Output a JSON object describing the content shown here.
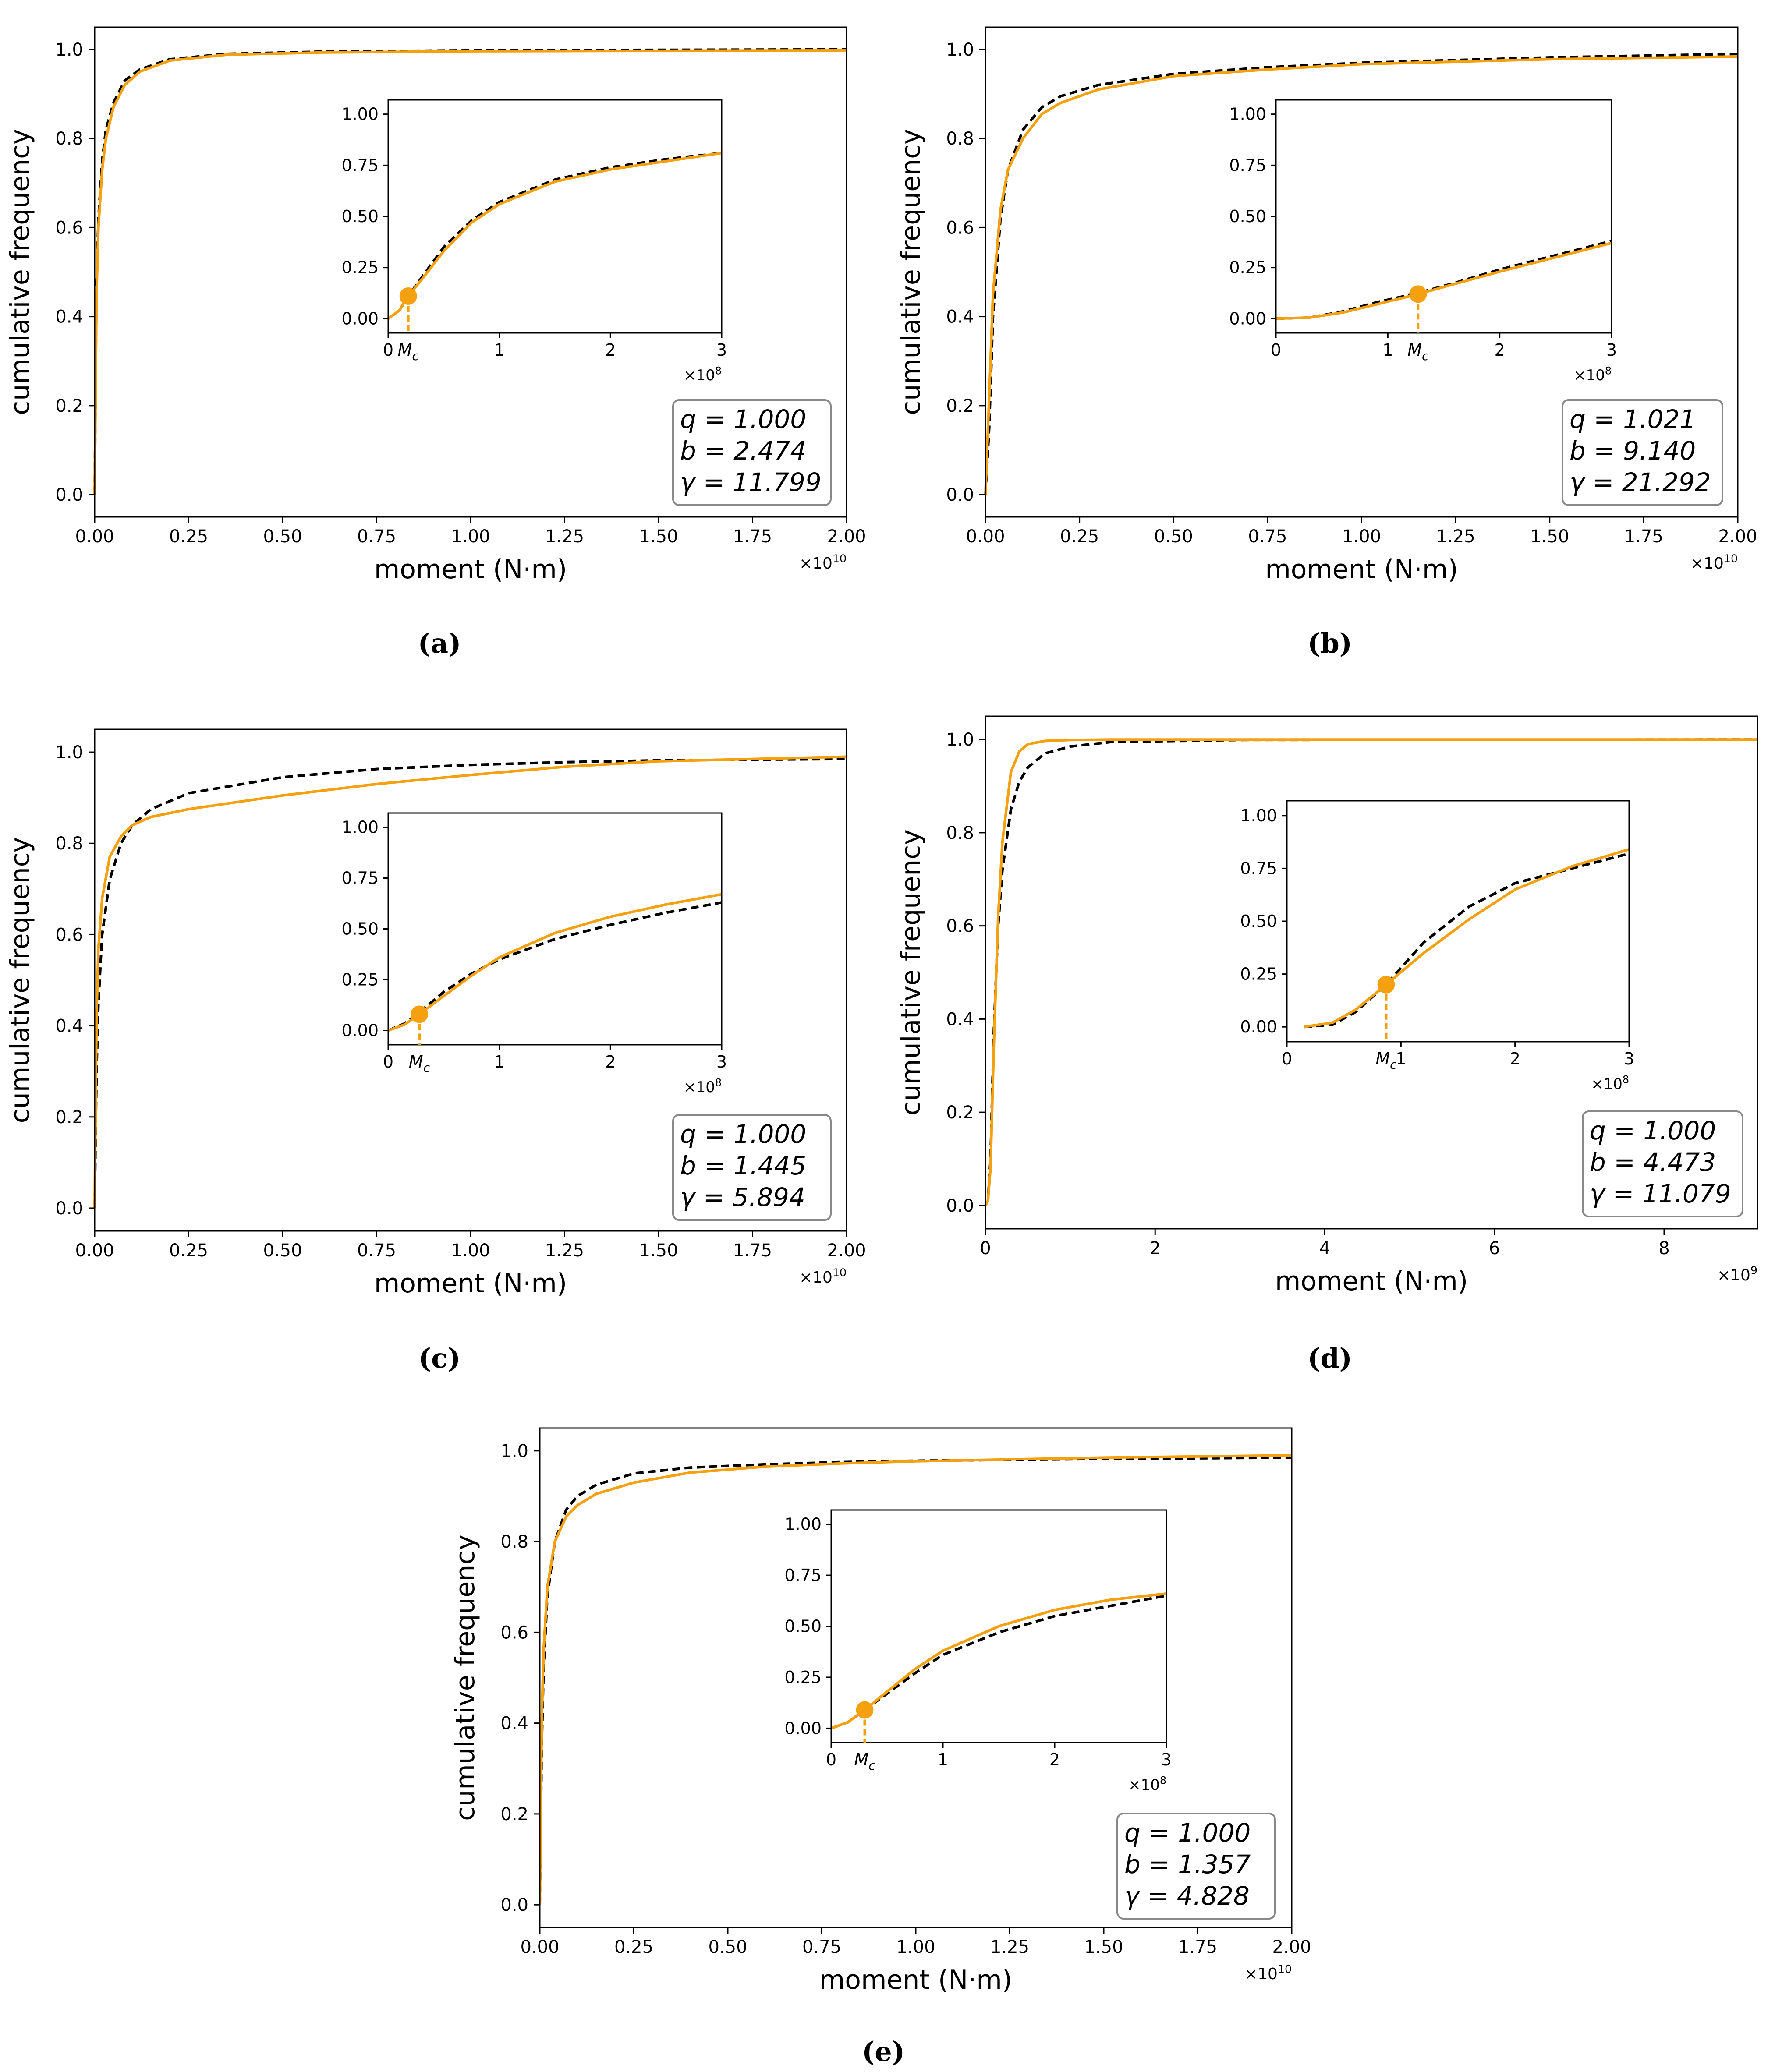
{
  "figure": {
    "line_colors": {
      "model": "#f5a00f",
      "empirical": "#000000",
      "mc_label": "#e00000"
    }
  },
  "chart_data": [
    {
      "id": "a",
      "type": "line",
      "caption": "(a)",
      "xlabel": "moment (N·m)",
      "ylabel": "cumulative frequency",
      "xlim": [
        0,
        2.0
      ],
      "ylim": [
        -0.05,
        1.05
      ],
      "x_ticks": [
        "0.00",
        "0.25",
        "0.50",
        "0.75",
        "1.00",
        "1.25",
        "1.50",
        "1.75",
        "2.00"
      ],
      "y_ticks": [
        "0.0",
        "0.2",
        "0.4",
        "0.6",
        "0.8",
        "1.0"
      ],
      "x_offset_base": "×10",
      "x_offset_exp": "10",
      "series": [
        {
          "name": "model (orange solid)",
          "x": [
            0,
            0.005,
            0.01,
            0.02,
            0.03,
            0.05,
            0.08,
            0.12,
            0.2,
            0.35,
            0.6,
            1.0,
            1.5,
            2.0
          ],
          "y": [
            0,
            0.45,
            0.6,
            0.73,
            0.8,
            0.87,
            0.92,
            0.95,
            0.975,
            0.988,
            0.993,
            0.996,
            0.997,
            0.998
          ]
        },
        {
          "name": "empirical (black dashed)",
          "x": [
            0,
            0.005,
            0.01,
            0.02,
            0.03,
            0.05,
            0.08,
            0.12,
            0.2,
            0.35,
            0.6,
            1.0,
            1.5,
            2.0
          ],
          "y": [
            0,
            0.47,
            0.62,
            0.75,
            0.82,
            0.88,
            0.93,
            0.955,
            0.978,
            0.99,
            0.995,
            0.998,
            0.999,
            1.0
          ]
        }
      ],
      "params": [
        "q = 1.000",
        "b = 2.474",
        "γ = 11.799"
      ],
      "inset": {
        "xlim": [
          0,
          3
        ],
        "ylim": [
          -0.07,
          1.07
        ],
        "x_ticks": [
          "0",
          "1",
          "2",
          "3"
        ],
        "y_ticks": [
          "0.00",
          "0.25",
          "0.50",
          "0.75",
          "1.00"
        ],
        "x_offset_base": "×10",
        "x_offset_exp": "8",
        "mc_x": 0.18,
        "mc_y": 0.11,
        "mc_label": "M",
        "mc_sub": "c",
        "series": [
          {
            "name": "model (orange solid)",
            "x": [
              0,
              0.1,
              0.18,
              0.3,
              0.5,
              0.75,
              1.0,
              1.5,
              2.0,
              2.5,
              3.0
            ],
            "y": [
              0,
              0.04,
              0.11,
              0.19,
              0.33,
              0.47,
              0.56,
              0.67,
              0.73,
              0.77,
              0.81
            ]
          },
          {
            "name": "empirical (black dashed)",
            "x": [
              0,
              0.1,
              0.18,
              0.3,
              0.5,
              0.75,
              1.0,
              1.5,
              2.0,
              2.5,
              3.0
            ],
            "y": [
              0,
              0.04,
              0.11,
              0.2,
              0.35,
              0.48,
              0.57,
              0.68,
              0.74,
              0.78,
              0.81
            ]
          }
        ]
      }
    },
    {
      "id": "b",
      "type": "line",
      "caption": "(b)",
      "xlabel": "moment (N·m)",
      "ylabel": "cumulative frequency",
      "xlim": [
        0,
        2.0
      ],
      "ylim": [
        -0.05,
        1.05
      ],
      "x_ticks": [
        "0.00",
        "0.25",
        "0.50",
        "0.75",
        "1.00",
        "1.25",
        "1.50",
        "1.75",
        "2.00"
      ],
      "y_ticks": [
        "0.0",
        "0.2",
        "0.4",
        "0.6",
        "0.8",
        "1.0"
      ],
      "x_offset_base": "×10",
      "x_offset_exp": "10",
      "series": [
        {
          "name": "model (orange solid)",
          "x": [
            0,
            0.01,
            0.02,
            0.04,
            0.06,
            0.1,
            0.15,
            0.2,
            0.3,
            0.5,
            0.75,
            1.0,
            1.5,
            2.0
          ],
          "y": [
            0,
            0.22,
            0.45,
            0.64,
            0.73,
            0.8,
            0.855,
            0.88,
            0.91,
            0.94,
            0.955,
            0.967,
            0.978,
            0.984
          ]
        },
        {
          "name": "empirical (black dashed)",
          "x": [
            0,
            0.01,
            0.02,
            0.04,
            0.06,
            0.1,
            0.15,
            0.2,
            0.3,
            0.5,
            0.75,
            1.0,
            1.5,
            2.0
          ],
          "y": [
            0,
            0.15,
            0.4,
            0.62,
            0.73,
            0.82,
            0.87,
            0.895,
            0.92,
            0.945,
            0.96,
            0.97,
            0.982,
            0.99
          ]
        }
      ],
      "params": [
        "q = 1.021",
        "b = 9.140",
        "γ = 21.292"
      ],
      "inset": {
        "xlim": [
          0,
          3
        ],
        "ylim": [
          -0.07,
          1.07
        ],
        "x_ticks": [
          "0",
          "1",
          "2",
          "3"
        ],
        "y_ticks": [
          "0.00",
          "0.25",
          "0.50",
          "0.75",
          "1.00"
        ],
        "x_offset_base": "×10",
        "x_offset_exp": "8",
        "mc_x": 1.27,
        "mc_y": 0.12,
        "mc_label": "M",
        "mc_sub": "c",
        "series": [
          {
            "name": "model (orange solid)",
            "x": [
              0,
              0.3,
              0.6,
              0.9,
              1.27,
              1.6,
              2.0,
              2.5,
              3.0
            ],
            "y": [
              0,
              0.005,
              0.03,
              0.07,
              0.12,
              0.17,
              0.23,
              0.3,
              0.37
            ]
          },
          {
            "name": "empirical (black dashed)",
            "x": [
              0,
              0.3,
              0.6,
              0.9,
              1.27,
              1.6,
              2.0,
              2.5,
              3.0
            ],
            "y": [
              0,
              0.005,
              0.035,
              0.08,
              0.125,
              0.175,
              0.24,
              0.31,
              0.38
            ]
          }
        ]
      }
    },
    {
      "id": "c",
      "type": "line",
      "caption": "(c)",
      "xlabel": "moment (N·m)",
      "ylabel": "cumulative frequency",
      "xlim": [
        0,
        2.0
      ],
      "ylim": [
        -0.05,
        1.05
      ],
      "x_ticks": [
        "0.00",
        "0.25",
        "0.50",
        "0.75",
        "1.00",
        "1.25",
        "1.50",
        "1.75",
        "2.00"
      ],
      "y_ticks": [
        "0.0",
        "0.2",
        "0.4",
        "0.6",
        "0.8",
        "1.0"
      ],
      "x_offset_base": "×10",
      "x_offset_exp": "10",
      "series": [
        {
          "name": "model (orange solid)",
          "x": [
            0,
            0.005,
            0.01,
            0.02,
            0.04,
            0.07,
            0.1,
            0.15,
            0.25,
            0.5,
            0.75,
            1.0,
            1.25,
            1.5,
            2.0
          ],
          "y": [
            0,
            0.42,
            0.57,
            0.68,
            0.77,
            0.815,
            0.84,
            0.858,
            0.875,
            0.905,
            0.93,
            0.95,
            0.968,
            0.98,
            0.99
          ]
        },
        {
          "name": "empirical (black dashed)",
          "x": [
            0,
            0.005,
            0.01,
            0.02,
            0.04,
            0.07,
            0.1,
            0.15,
            0.25,
            0.5,
            0.75,
            1.0,
            1.25,
            1.5,
            2.0
          ],
          "y": [
            0,
            0.3,
            0.45,
            0.6,
            0.72,
            0.8,
            0.84,
            0.875,
            0.91,
            0.945,
            0.963,
            0.972,
            0.978,
            0.982,
            0.985
          ]
        }
      ],
      "params": [
        "q = 1.000",
        "b = 1.445",
        "γ = 5.894"
      ],
      "inset": {
        "xlim": [
          0,
          3
        ],
        "ylim": [
          -0.07,
          1.07
        ],
        "x_ticks": [
          "0",
          "1",
          "2",
          "3"
        ],
        "y_ticks": [
          "0.00",
          "0.25",
          "0.50",
          "0.75",
          "1.00"
        ],
        "x_offset_base": "×10",
        "x_offset_exp": "8",
        "mc_x": 0.28,
        "mc_y": 0.08,
        "mc_label": "M",
        "mc_sub": "c",
        "series": [
          {
            "name": "model (orange solid)",
            "x": [
              0,
              0.15,
              0.28,
              0.5,
              0.75,
              1.0,
              1.5,
              2.0,
              2.5,
              3.0
            ],
            "y": [
              0,
              0.03,
              0.08,
              0.17,
              0.27,
              0.36,
              0.48,
              0.56,
              0.62,
              0.67
            ]
          },
          {
            "name": "empirical (black dashed)",
            "x": [
              0,
              0.15,
              0.28,
              0.5,
              0.75,
              1.0,
              1.5,
              2.0,
              2.5,
              3.0
            ],
            "y": [
              0,
              0.035,
              0.09,
              0.19,
              0.28,
              0.35,
              0.45,
              0.52,
              0.58,
              0.63
            ]
          }
        ]
      }
    },
    {
      "id": "d",
      "type": "line",
      "caption": "(d)",
      "xlabel": "moment (N·m)",
      "ylabel": "cumulative frequency",
      "xlim": [
        0,
        9.1
      ],
      "ylim": [
        -0.05,
        1.05
      ],
      "x_ticks": [
        "0",
        "2",
        "4",
        "6",
        "8"
      ],
      "x_tick_values": [
        0,
        2,
        4,
        6,
        8
      ],
      "y_ticks": [
        "0.0",
        "0.2",
        "0.4",
        "0.6",
        "0.8",
        "1.0"
      ],
      "x_offset_base": "×10",
      "x_offset_exp": "9",
      "series": [
        {
          "name": "model (orange solid)",
          "x": [
            0,
            0.03,
            0.06,
            0.1,
            0.15,
            0.2,
            0.3,
            0.4,
            0.5,
            0.7,
            1.0,
            1.5,
            3.0,
            9.1
          ],
          "y": [
            0,
            0.01,
            0.08,
            0.35,
            0.62,
            0.78,
            0.93,
            0.975,
            0.99,
            0.997,
            0.999,
            1.0,
            1.0,
            1.0
          ]
        },
        {
          "name": "empirical (black dashed)",
          "x": [
            0,
            0.03,
            0.06,
            0.1,
            0.15,
            0.2,
            0.3,
            0.4,
            0.5,
            0.7,
            1.0,
            1.5,
            3.0,
            9.1
          ],
          "y": [
            0,
            0.01,
            0.1,
            0.38,
            0.6,
            0.72,
            0.85,
            0.91,
            0.94,
            0.97,
            0.985,
            0.995,
            0.999,
            1.0
          ]
        }
      ],
      "params": [
        "q = 1.000",
        "b = 4.473",
        "γ = 11.079"
      ],
      "inset": {
        "xlim": [
          0,
          3
        ],
        "ylim": [
          -0.07,
          1.07
        ],
        "x_ticks": [
          "0",
          "1",
          "2",
          "3"
        ],
        "y_ticks": [
          "0.00",
          "0.25",
          "0.50",
          "0.75",
          "1.00"
        ],
        "x_offset_base": "×10",
        "x_offset_exp": "8",
        "mc_x": 0.87,
        "mc_y": 0.2,
        "mc_label": "M",
        "mc_sub": "c",
        "series": [
          {
            "name": "model (orange solid)",
            "x": [
              0.15,
              0.4,
              0.6,
              0.87,
              1.2,
              1.6,
              2.0,
              2.5,
              3.0
            ],
            "y": [
              0,
              0.02,
              0.08,
              0.2,
              0.35,
              0.51,
              0.65,
              0.76,
              0.84
            ]
          },
          {
            "name": "empirical (black dashed)",
            "x": [
              0.15,
              0.4,
              0.6,
              0.87,
              1.2,
              1.6,
              2.0,
              2.5,
              3.0
            ],
            "y": [
              0,
              0.01,
              0.07,
              0.2,
              0.4,
              0.57,
              0.68,
              0.75,
              0.82
            ]
          }
        ]
      }
    },
    {
      "id": "e",
      "type": "line",
      "caption": "(e)",
      "xlabel": "moment (N·m)",
      "ylabel": "cumulative frequency",
      "xlim": [
        0,
        2.0
      ],
      "ylim": [
        -0.05,
        1.05
      ],
      "x_ticks": [
        "0.00",
        "0.25",
        "0.50",
        "0.75",
        "1.00",
        "1.25",
        "1.50",
        "1.75",
        "2.00"
      ],
      "y_ticks": [
        "0.0",
        "0.2",
        "0.4",
        "0.6",
        "0.8",
        "1.0"
      ],
      "x_offset_base": "×10",
      "x_offset_exp": "10",
      "series": [
        {
          "name": "model (orange solid)",
          "x": [
            0,
            0.005,
            0.01,
            0.02,
            0.04,
            0.07,
            0.1,
            0.15,
            0.25,
            0.4,
            0.6,
            0.8,
            1.0,
            1.5,
            2.0
          ],
          "y": [
            0,
            0.4,
            0.56,
            0.7,
            0.8,
            0.855,
            0.88,
            0.905,
            0.93,
            0.952,
            0.965,
            0.972,
            0.977,
            0.985,
            0.99
          ]
        },
        {
          "name": "empirical (black dashed)",
          "x": [
            0,
            0.005,
            0.01,
            0.02,
            0.04,
            0.07,
            0.1,
            0.15,
            0.25,
            0.4,
            0.6,
            0.8,
            1.0,
            1.5,
            2.0
          ],
          "y": [
            0,
            0.35,
            0.52,
            0.68,
            0.8,
            0.87,
            0.9,
            0.925,
            0.95,
            0.963,
            0.97,
            0.975,
            0.978,
            0.982,
            0.985
          ]
        }
      ],
      "params": [
        "q = 1.000",
        "b = 1.357",
        "γ = 4.828"
      ],
      "inset": {
        "xlim": [
          0,
          3
        ],
        "ylim": [
          -0.07,
          1.07
        ],
        "x_ticks": [
          "0",
          "1",
          "2",
          "3"
        ],
        "y_ticks": [
          "0.00",
          "0.25",
          "0.50",
          "0.75",
          "1.00"
        ],
        "x_offset_base": "×10",
        "x_offset_exp": "8",
        "mc_x": 0.3,
        "mc_y": 0.09,
        "mc_label": "M",
        "mc_sub": "c",
        "series": [
          {
            "name": "model (orange solid)",
            "x": [
              0,
              0.15,
              0.3,
              0.5,
              0.75,
              1.0,
              1.5,
              2.0,
              2.5,
              3.0
            ],
            "y": [
              0,
              0.03,
              0.09,
              0.18,
              0.29,
              0.38,
              0.5,
              0.58,
              0.63,
              0.66
            ]
          },
          {
            "name": "empirical (black dashed)",
            "x": [
              0,
              0.15,
              0.3,
              0.5,
              0.75,
              1.0,
              1.5,
              2.0,
              2.5,
              3.0
            ],
            "y": [
              0,
              0.03,
              0.09,
              0.17,
              0.27,
              0.36,
              0.47,
              0.55,
              0.6,
              0.65
            ]
          }
        ]
      }
    }
  ]
}
